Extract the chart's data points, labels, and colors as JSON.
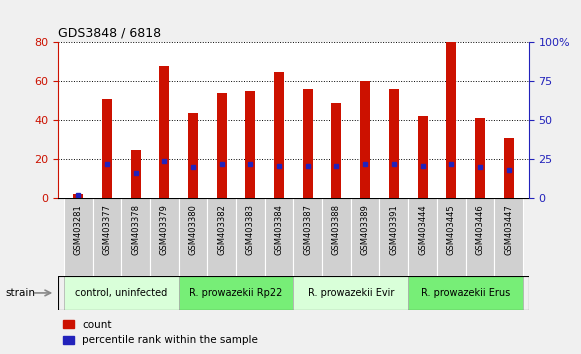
{
  "title": "GDS3848 / 6818",
  "samples": [
    "GSM403281",
    "GSM403377",
    "GSM403378",
    "GSM403379",
    "GSM403380",
    "GSM403382",
    "GSM403383",
    "GSM403384",
    "GSM403387",
    "GSM403388",
    "GSM403389",
    "GSM403391",
    "GSM403444",
    "GSM403445",
    "GSM403446",
    "GSM403447"
  ],
  "counts": [
    2,
    51,
    25,
    68,
    44,
    54,
    55,
    65,
    56,
    49,
    60,
    56,
    42,
    80,
    41,
    31
  ],
  "percentile_ranks": [
    2,
    22,
    16,
    24,
    20,
    22,
    22,
    21,
    21,
    21,
    22,
    22,
    21,
    22,
    20,
    18
  ],
  "groups": [
    {
      "label": "control, uninfected",
      "start": 0,
      "end": 3,
      "color": "#ccffcc"
    },
    {
      "label": "R. prowazekii Rp22",
      "start": 4,
      "end": 7,
      "color": "#88ee88"
    },
    {
      "label": "R. prowazekii Evir",
      "start": 8,
      "end": 11,
      "color": "#ccffcc"
    },
    {
      "label": "R. prowazekii Erus",
      "start": 12,
      "end": 15,
      "color": "#88ee88"
    }
  ],
  "ylim_left": [
    0,
    80
  ],
  "ylim_right": [
    0,
    100
  ],
  "yticks_left": [
    0,
    20,
    40,
    60,
    80
  ],
  "yticks_right": [
    0,
    25,
    50,
    75,
    100
  ],
  "bar_color": "#cc1100",
  "dot_color": "#2222bb",
  "plot_bg": "#ffffff",
  "fig_bg": "#f0f0f0",
  "left_tick_color": "#cc1100",
  "right_tick_color": "#2222bb",
  "legend_count_label": "count",
  "legend_pct_label": "percentile rank within the sample",
  "strain_label": "strain",
  "tick_label_bg": "#cccccc",
  "group_box_lighter": "#d9ffd9",
  "group_box_darker": "#77ee77"
}
